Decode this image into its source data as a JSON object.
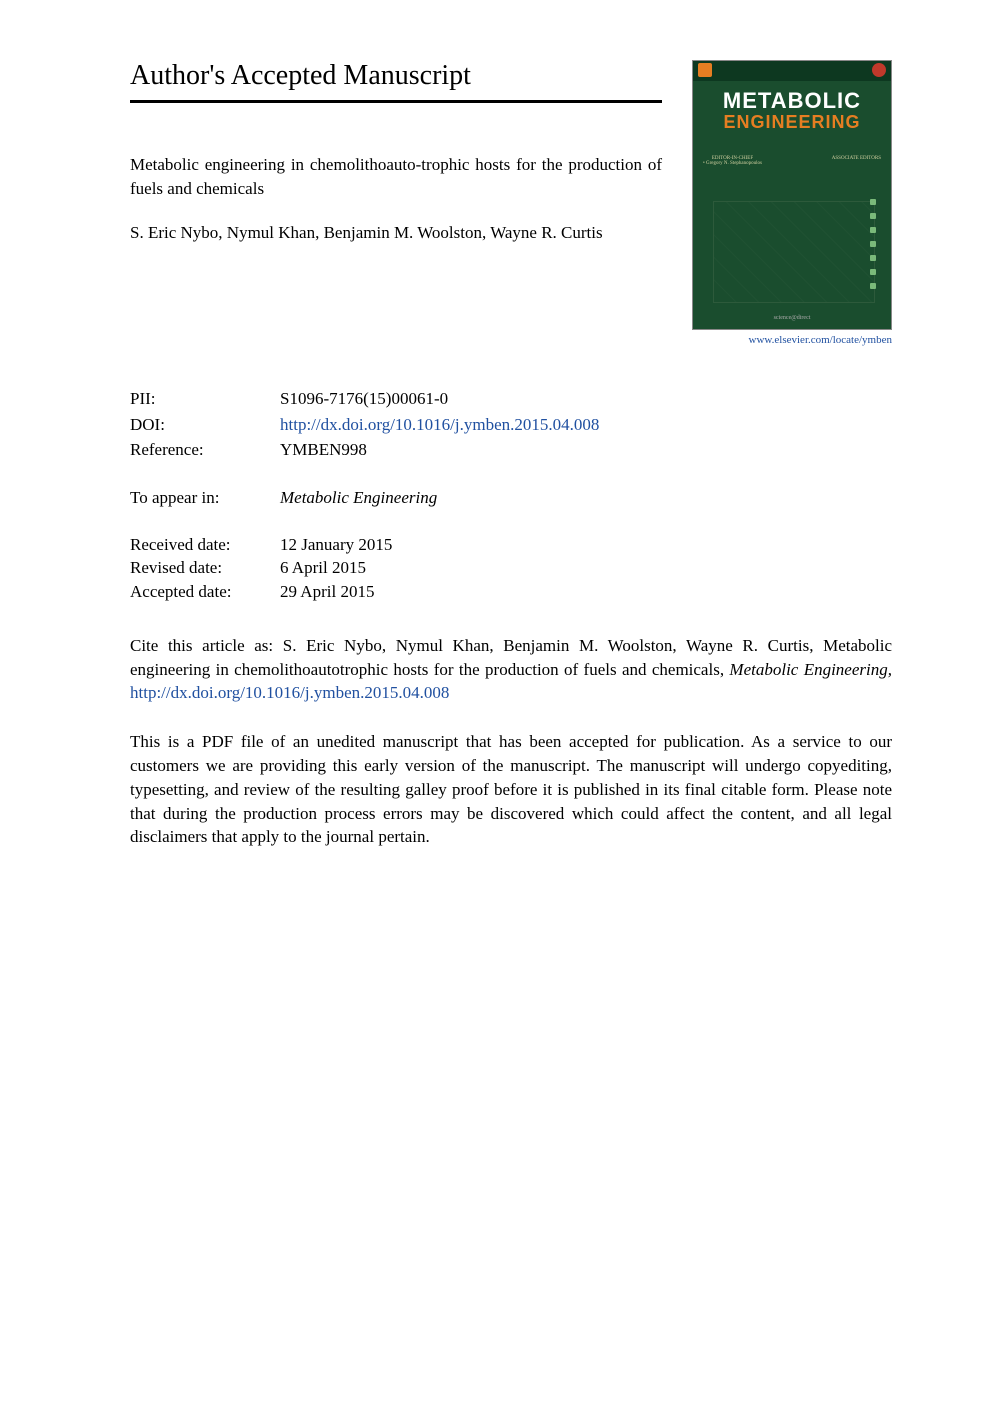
{
  "heading": "Author's Accepted Manuscript",
  "article": {
    "title": "Metabolic engineering in chemolithoauto-trophic hosts for the production of fuels and chemicals",
    "authors": "S. Eric Nybo, Nymul Khan, Benjamin M. Woolston, Wayne R. Curtis"
  },
  "journal_cover": {
    "title_line1": "METABOLIC",
    "title_line2": "ENGINEERING",
    "editor_left_heading": "EDITOR-IN-CHIEF",
    "editor_left_name": "• Gregory N. Stephanopoulos",
    "editor_right_heading": "ASSOCIATE EDITORS",
    "url": "www.elsevier.com/locate/ymben"
  },
  "metadata": {
    "pii_label": "PII:",
    "pii_value": "S1096-7176(15)00061-0",
    "doi_label": "DOI:",
    "doi_value": "http://dx.doi.org/10.1016/j.ymben.2015.04.008",
    "reference_label": "Reference:",
    "reference_value": "YMBEN998"
  },
  "appear": {
    "label": "To appear in:",
    "value": "Metabolic Engineering"
  },
  "dates": {
    "received_label": "Received date:",
    "received_value": "12 January 2015",
    "revised_label": "Revised date:",
    "revised_value": "6 April 2015",
    "accepted_label": "Accepted date:",
    "accepted_value": "29 April 2015"
  },
  "citation": {
    "prefix": "Cite this article as: S. Eric Nybo, Nymul Khan, Benjamin M. Woolston, Wayne R. Curtis, Metabolic engineering in chemolithoautotrophic hosts for the production of fuels and chemicals, ",
    "journal": "Metabolic Engineering,",
    "link": "http://dx.doi.org/10.1016/j.ymben.2015.04.008"
  },
  "disclaimer": "This is a PDF file of an unedited manuscript that has been accepted for publication. As a service to our customers we are providing this early version of the manuscript. The manuscript will undergo copyediting, typesetting, and review of the resulting galley proof before it is published in its final citable form. Please note that during the production process errors may be discovered which could affect the content, and all legal disclaimers that apply to the journal pertain.",
  "colors": {
    "link": "#2050a0",
    "cover_bg": "#1a4d2e",
    "cover_accent": "#e67e22"
  }
}
